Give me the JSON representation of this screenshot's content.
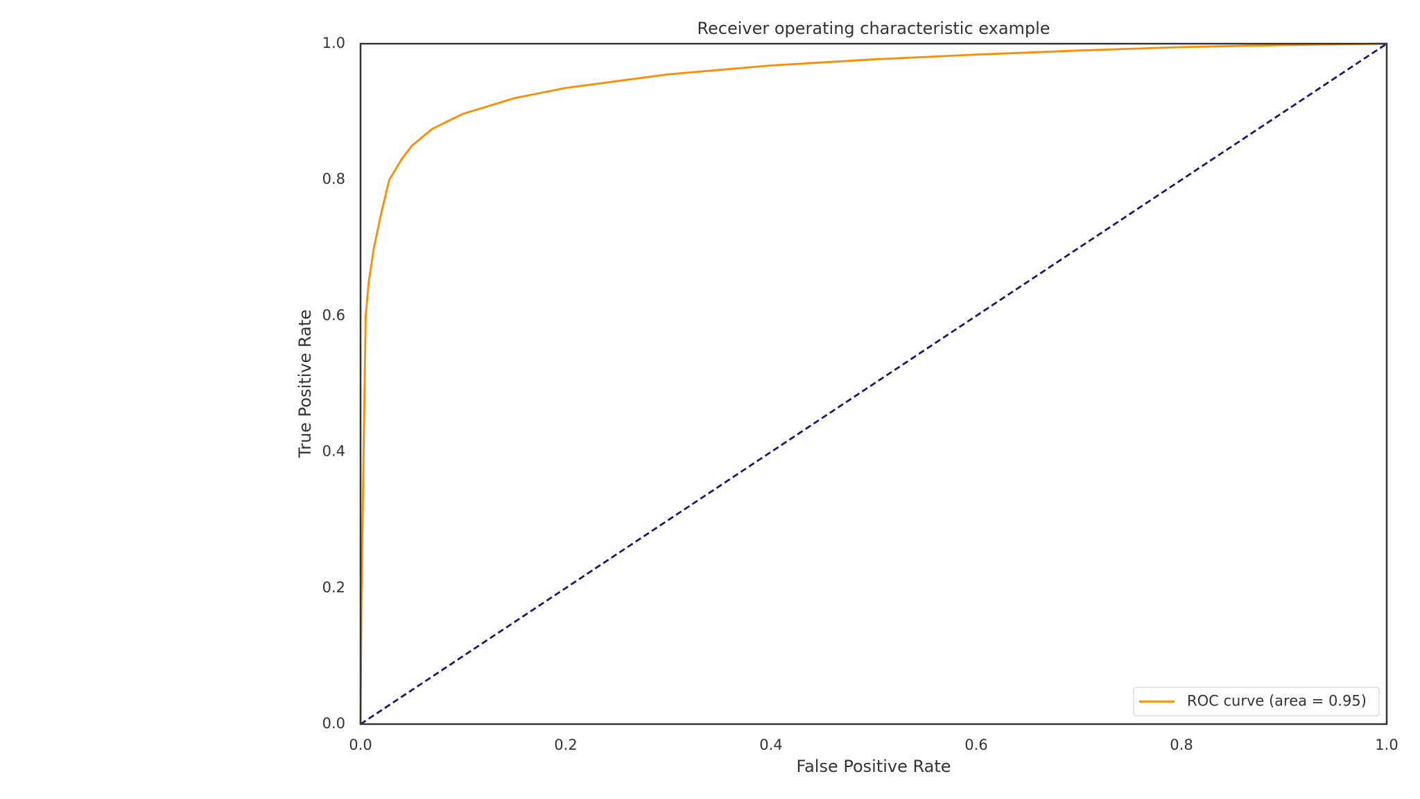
{
  "chart_data": {
    "type": "line",
    "title": "Receiver operating characteristic example",
    "xlabel": "False Positive Rate",
    "ylabel": "True Positive Rate",
    "series": [
      {
        "name": "ROC curve (area = 0.95)",
        "color": "#ff8c00",
        "linestyle": "solid",
        "x": [
          0,
          0.001,
          0.003,
          0.005,
          0.008,
          0.013,
          0.02,
          0.028,
          0.04,
          0.05,
          0.07,
          0.1,
          0.15,
          0.2,
          0.3,
          0.4,
          0.5,
          0.6,
          0.7,
          0.8,
          0.9,
          1.0
        ],
        "values": [
          0,
          0.2,
          0.4,
          0.6,
          0.65,
          0.7,
          0.75,
          0.8,
          0.83,
          0.85,
          0.875,
          0.897,
          0.92,
          0.935,
          0.955,
          0.968,
          0.977,
          0.984,
          0.99,
          0.995,
          0.998,
          1.0
        ]
      },
      {
        "color": "#1c1a6e",
        "linestyle": "dashed",
        "x": [
          0,
          1.0
        ],
        "values": [
          0,
          1.0
        ]
      }
    ],
    "xlim": [
      0,
      1.0
    ],
    "ylim": [
      0,
      1.0
    ],
    "xticks": [
      {
        "value": 0,
        "label": "0.0"
      },
      0.2,
      0.4,
      0.6,
      0.8,
      {
        "value": 1,
        "label": "1.0"
      }
    ],
    "yticks": [
      {
        "value": 0,
        "label": "0.0"
      },
      0.2,
      0.4,
      0.6,
      0.8,
      {
        "value": 1,
        "label": "1.0"
      }
    ],
    "grid": false,
    "legend": "lower right"
  }
}
